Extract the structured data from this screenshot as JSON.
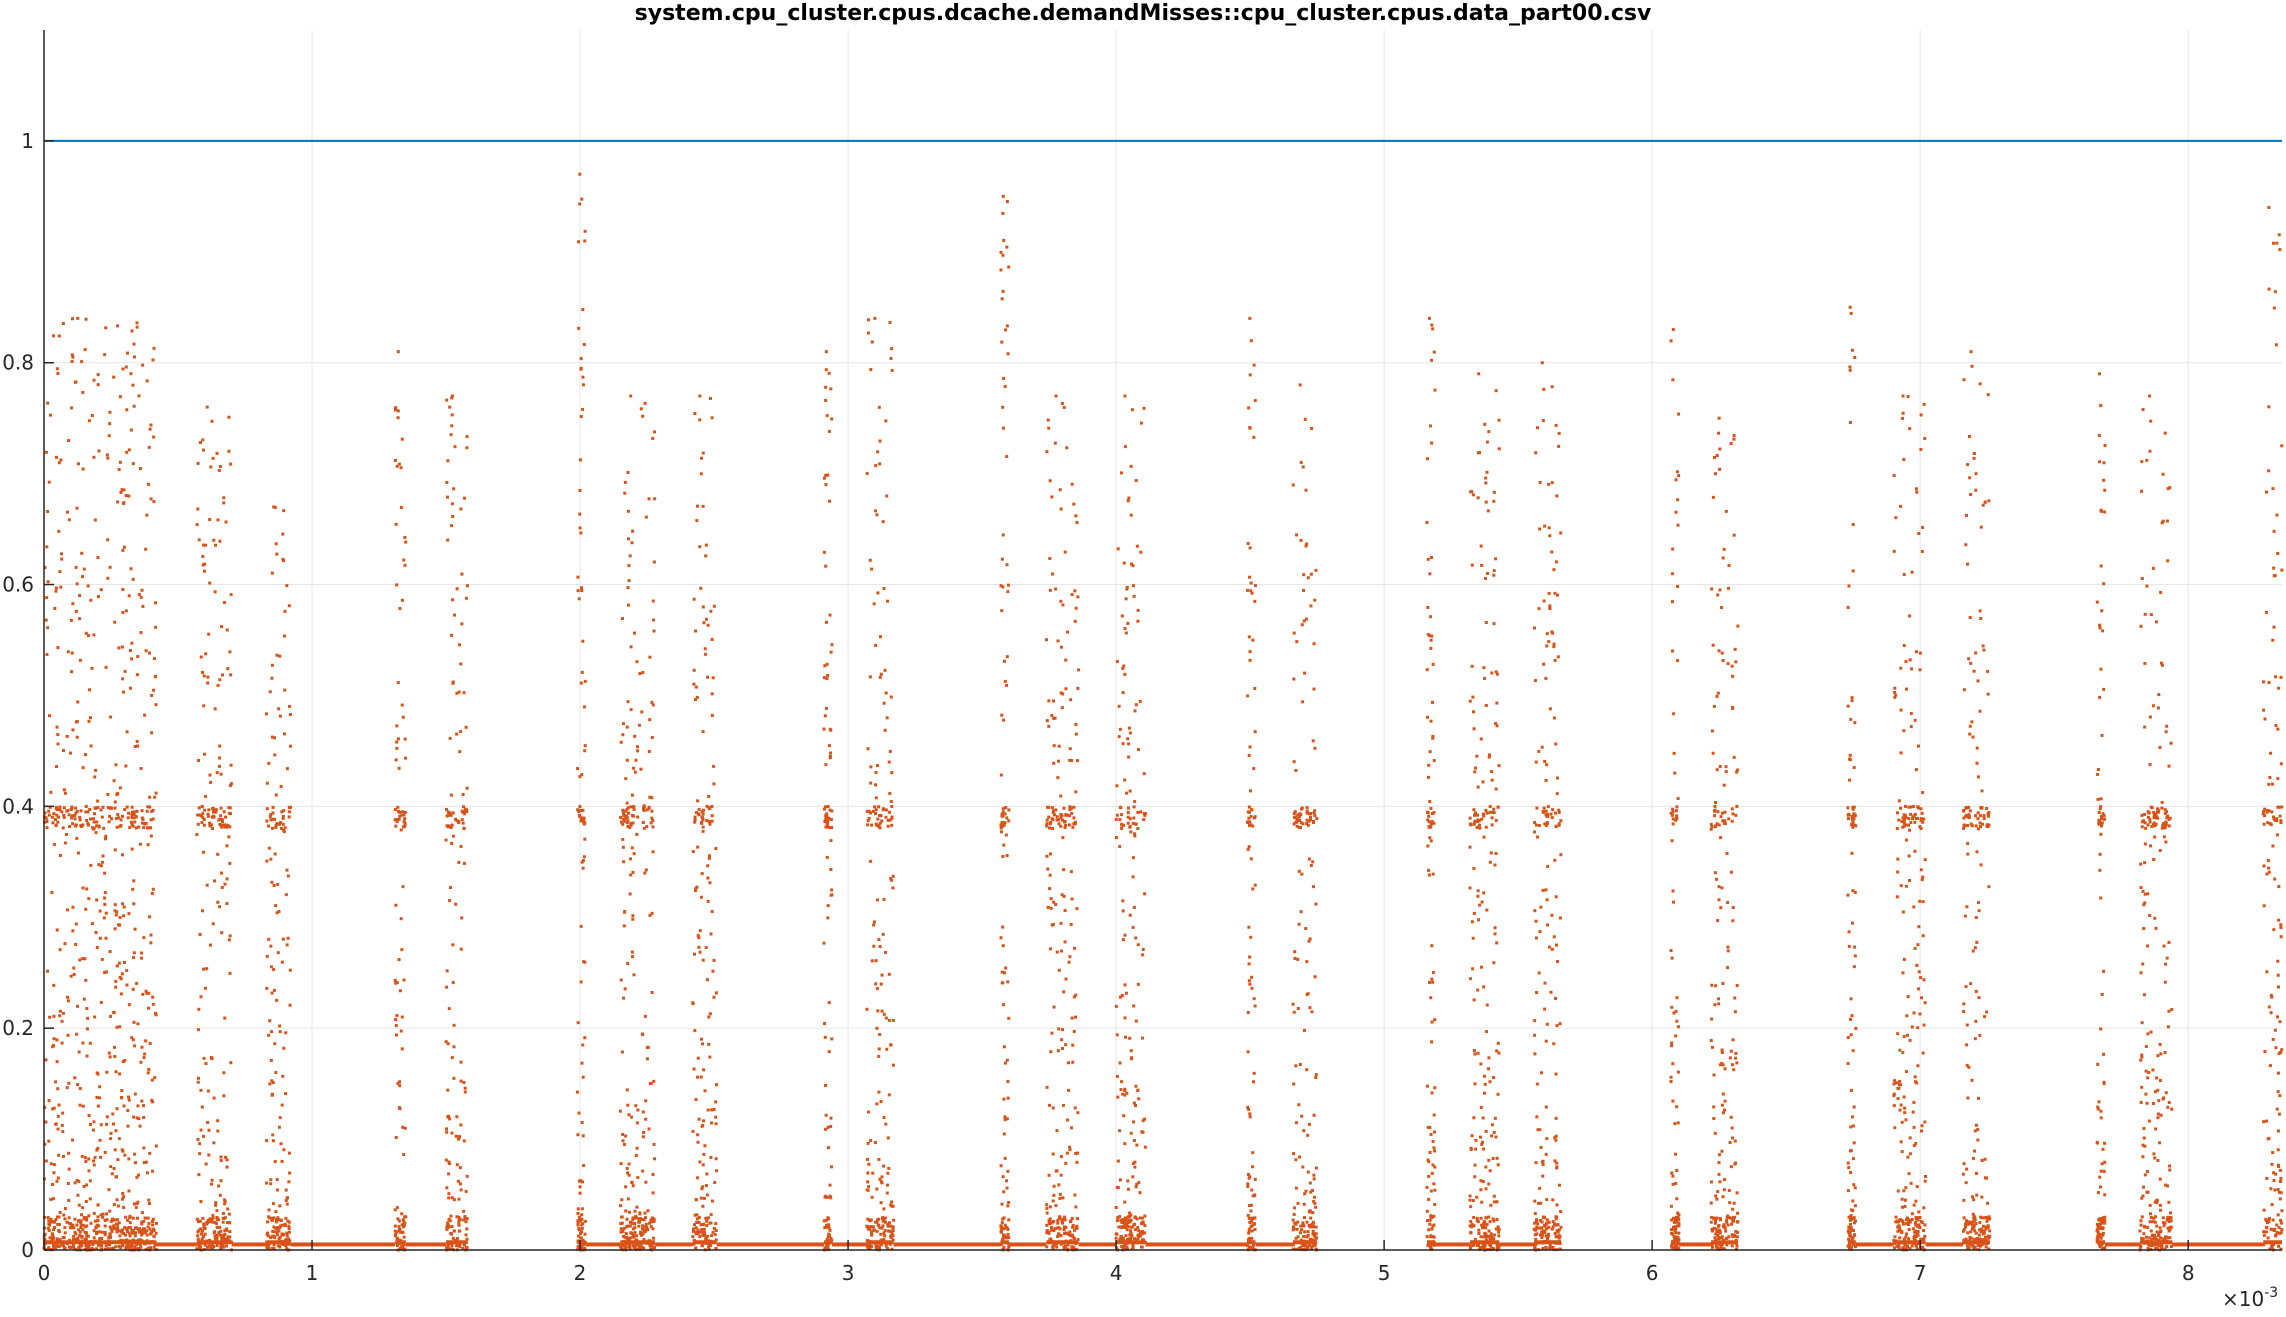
{
  "chart_data": {
    "type": "scatter",
    "title": "system.cpu_cluster.cpus.dcache.demandMisses::cpu_cluster.cpus.data_part00.csv",
    "xlabel": "",
    "ylabel": "",
    "xlim": [
      0,
      0.00835
    ],
    "ylim": [
      0,
      1.1
    ],
    "x_ticks": [
      0,
      0.001,
      0.002,
      0.003,
      0.004,
      0.005,
      0.006,
      0.007,
      0.008
    ],
    "x_tick_labels": [
      "0",
      "1",
      "2",
      "3",
      "4",
      "5",
      "6",
      "7",
      "8"
    ],
    "x_exponent_label": "×10",
    "x_exponent_power": "-3",
    "y_ticks": [
      0,
      0.2,
      0.4,
      0.6,
      0.8,
      1
    ],
    "y_tick_labels": [
      "0",
      "0.2",
      "0.4",
      "0.6",
      "0.8",
      "1"
    ],
    "grid": true,
    "series": [
      {
        "kind": "line",
        "color": "#0072BD",
        "x": [
          0,
          0.00835
        ],
        "y": [
          1,
          1
        ]
      },
      {
        "kind": "scatter",
        "color": "#D95319",
        "note_points": "dense vertical bursts; approximate cluster extents",
        "clusters": [
          {
            "x_start": 0.0,
            "x_end": 0.00042,
            "y_max": 0.84
          },
          {
            "x_start": 0.00057,
            "x_end": 0.0007,
            "y_max": 0.76
          },
          {
            "x_start": 0.00083,
            "x_end": 0.00092,
            "y_max": 0.67
          },
          {
            "x_start": 0.00131,
            "x_end": 0.00135,
            "y_max": 0.81
          },
          {
            "x_start": 0.0015,
            "x_end": 0.00158,
            "y_max": 0.77
          },
          {
            "x_start": 0.00199,
            "x_end": 0.00202,
            "y_max": 0.97
          },
          {
            "x_start": 0.00215,
            "x_end": 0.00228,
            "y_max": 0.77
          },
          {
            "x_start": 0.00242,
            "x_end": 0.00251,
            "y_max": 0.77
          },
          {
            "x_start": 0.00291,
            "x_end": 0.00294,
            "y_max": 0.81
          },
          {
            "x_start": 0.00307,
            "x_end": 0.00317,
            "y_max": 0.84
          },
          {
            "x_start": 0.00357,
            "x_end": 0.0036,
            "y_max": 0.95
          },
          {
            "x_start": 0.00374,
            "x_end": 0.00386,
            "y_max": 0.77
          },
          {
            "x_start": 0.004,
            "x_end": 0.00411,
            "y_max": 0.77
          },
          {
            "x_start": 0.00449,
            "x_end": 0.00452,
            "y_max": 0.84
          },
          {
            "x_start": 0.00466,
            "x_end": 0.00475,
            "y_max": 0.78
          },
          {
            "x_start": 0.00516,
            "x_end": 0.00519,
            "y_max": 0.84
          },
          {
            "x_start": 0.00532,
            "x_end": 0.00543,
            "y_max": 0.79
          },
          {
            "x_start": 0.00556,
            "x_end": 0.00566,
            "y_max": 0.8
          },
          {
            "x_start": 0.00607,
            "x_end": 0.0061,
            "y_max": 0.83
          },
          {
            "x_start": 0.00622,
            "x_end": 0.00632,
            "y_max": 0.75
          },
          {
            "x_start": 0.00673,
            "x_end": 0.00676,
            "y_max": 0.85
          },
          {
            "x_start": 0.0069,
            "x_end": 0.00702,
            "y_max": 0.77
          },
          {
            "x_start": 0.00716,
            "x_end": 0.00726,
            "y_max": 0.81
          },
          {
            "x_start": 0.00766,
            "x_end": 0.00769,
            "y_max": 0.79
          },
          {
            "x_start": 0.00782,
            "x_end": 0.00794,
            "y_max": 0.77
          },
          {
            "x_start": 0.00828,
            "x_end": 0.00835,
            "y_max": 0.94
          }
        ]
      }
    ]
  }
}
